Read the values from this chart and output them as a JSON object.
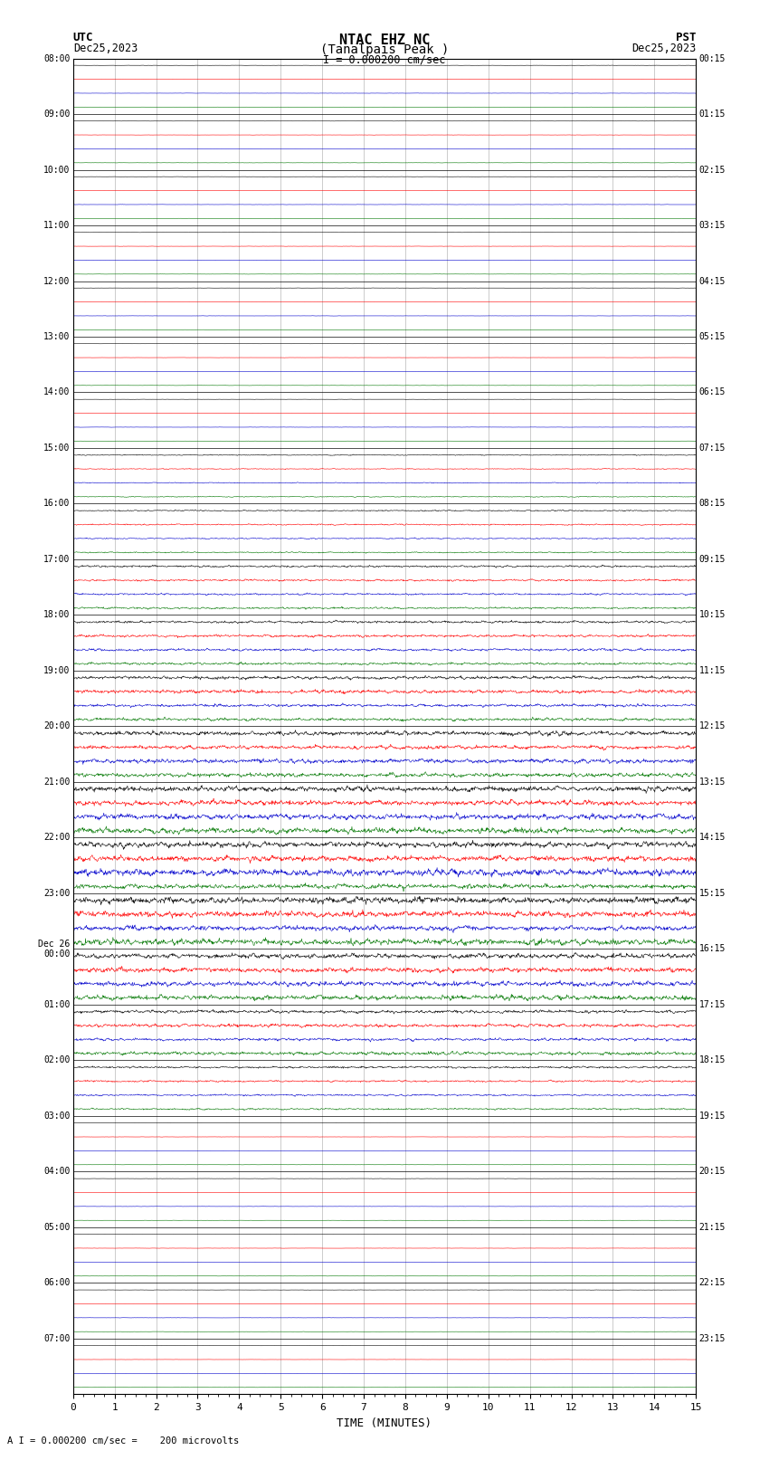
{
  "title_line1": "NTAC EHZ NC",
  "title_line2": "(Tanalpais Peak )",
  "scale_label": "I = 0.000200 cm/sec",
  "bottom_label": "A I = 0.000200 cm/sec =    200 microvolts",
  "xlabel": "TIME (MINUTES)",
  "xlim": [
    0,
    15
  ],
  "xticks": [
    0,
    1,
    2,
    3,
    4,
    5,
    6,
    7,
    8,
    9,
    10,
    11,
    12,
    13,
    14,
    15
  ],
  "bg_color": "#ffffff",
  "grid_color": "#888888",
  "utc_labels": [
    "08:00",
    "09:00",
    "10:00",
    "11:00",
    "12:00",
    "13:00",
    "14:00",
    "15:00",
    "16:00",
    "17:00",
    "18:00",
    "19:00",
    "20:00",
    "21:00",
    "22:00",
    "23:00",
    "Dec 26\n00:00",
    "01:00",
    "02:00",
    "03:00",
    "04:00",
    "05:00",
    "06:00",
    "07:00"
  ],
  "pst_labels": [
    "00:15",
    "01:15",
    "02:15",
    "03:15",
    "04:15",
    "05:15",
    "06:15",
    "07:15",
    "08:15",
    "09:15",
    "10:15",
    "11:15",
    "12:15",
    "13:15",
    "14:15",
    "15:15",
    "16:15",
    "17:15",
    "18:15",
    "19:15",
    "20:15",
    "21:15",
    "22:15",
    "23:15"
  ],
  "num_hours": 24,
  "traces_per_hour": 4,
  "colors": [
    "#000000",
    "#ff0000",
    "#0000cc",
    "#007700"
  ],
  "noise_seed": 12345,
  "activity": [
    0.012,
    0.012,
    0.012,
    0.012,
    0.012,
    0.012,
    0.012,
    0.08,
    0.12,
    0.18,
    0.25,
    0.3,
    0.4,
    0.55,
    0.6,
    0.58,
    0.45,
    0.3,
    0.18,
    0.012,
    0.012,
    0.012,
    0.012,
    0.012
  ],
  "trace_amplitude": 0.35,
  "quiet_amplitude": 0.04
}
